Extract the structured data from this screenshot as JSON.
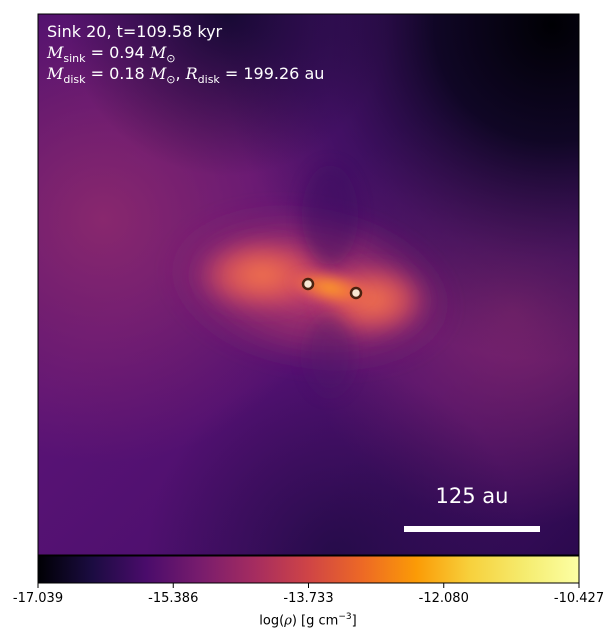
{
  "annotation": {
    "line1": "Sink 20, t=109.58 kyr",
    "mass_label": "M",
    "mass_sub": "sink",
    "mass_value": " = 0.94 ",
    "mass_unit": "M",
    "sun_symbol": "⊙",
    "disk_mass_label": "M",
    "disk_mass_sub": "disk",
    "disk_mass_value": " = 0.18 ",
    "disk_mass_unit": "M",
    "disk_radius_label": "R",
    "disk_radius_sub": "disk",
    "disk_radius_value": " = 199.26 au"
  },
  "scale_bar": {
    "label": "125 au"
  },
  "colorbar": {
    "ticks": [
      "-17.039",
      "-15.386",
      "-13.733",
      "-12.080",
      "-10.427"
    ],
    "label_prefix": "log(",
    "label_rho": "ρ",
    "label_suffix": ") [g cm",
    "label_exp": "−3",
    "label_close": "]",
    "colormap": "inferno"
  },
  "colors": {
    "bar": "#ffffff",
    "star_ring": "#4a2210",
    "star_fill": "#f7e7d3"
  }
}
